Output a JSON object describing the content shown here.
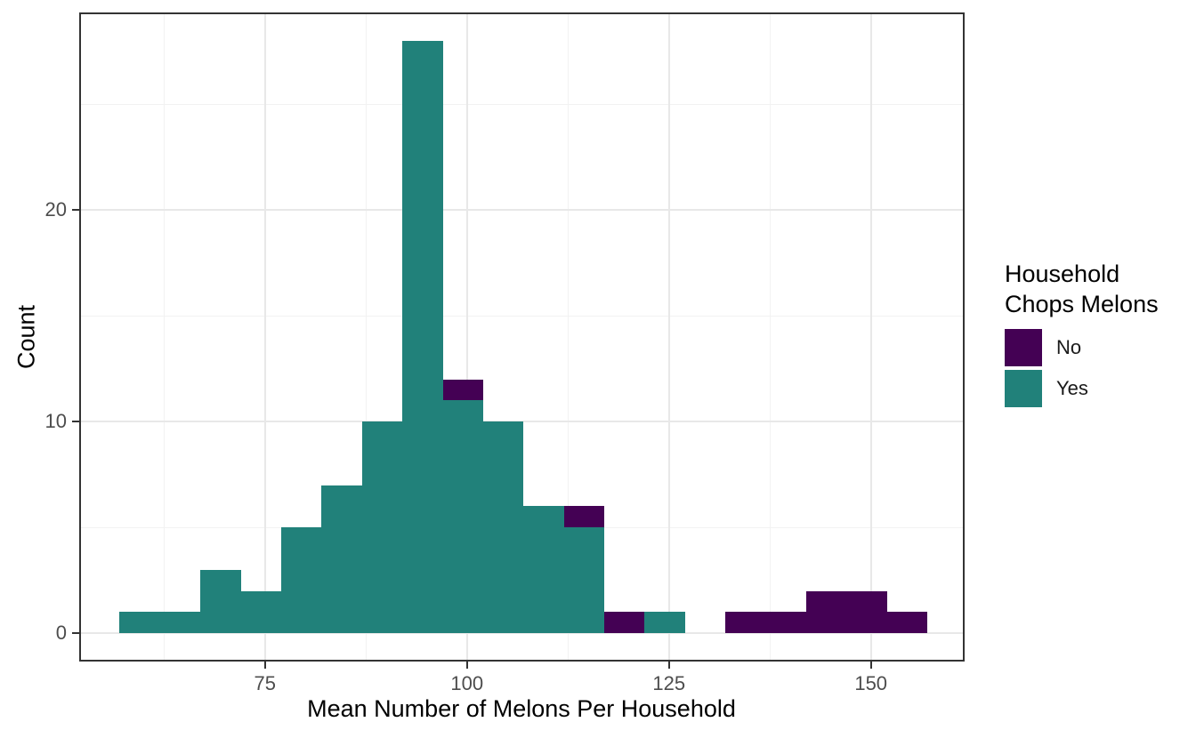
{
  "figure": {
    "xlabel": "Mean Number of Melons Per Household",
    "ylabel": "Count",
    "legend": {
      "title_lines": [
        "Household",
        "Chops Melons"
      ],
      "items": [
        {
          "label": "No",
          "color": "#440154"
        },
        {
          "label": "Yes",
          "color": "#21817A"
        }
      ]
    },
    "colors": {
      "background": "#ffffff",
      "panel_border": "#333333",
      "grid_major": "#e8e8e8",
      "grid_minor": "#f2f2f2",
      "tick_mark": "#333333",
      "tick_label": "#4d4d4d",
      "axis_title": "#000000",
      "fill_no": "#440154",
      "fill_yes": "#21817A"
    }
  },
  "chart_data": {
    "type": "bar",
    "subtype": "stacked-histogram",
    "title": "",
    "xlabel": "Mean Number of Melons Per Household",
    "ylabel": "Count",
    "legend_title": "Household Chops Melons",
    "legend_position": "right",
    "grid": true,
    "bin_width": 5,
    "bin_starts": [
      57,
      62,
      67,
      72,
      77,
      82,
      87,
      92,
      97,
      102,
      107,
      112,
      117,
      122,
      127,
      132,
      137,
      142,
      147,
      152
    ],
    "series": [
      {
        "name": "Yes",
        "color": "#21817A",
        "values": [
          1,
          1,
          3,
          2,
          5,
          7,
          10,
          28,
          11,
          10,
          6,
          5,
          0,
          1,
          0,
          0,
          0,
          0,
          0,
          0
        ]
      },
      {
        "name": "No",
        "color": "#440154",
        "values": [
          0,
          0,
          0,
          0,
          0,
          0,
          0,
          0,
          1,
          0,
          0,
          1,
          1,
          0,
          0,
          1,
          1,
          2,
          2,
          1
        ]
      }
    ],
    "x_ticks": [
      75,
      100,
      125,
      150
    ],
    "y_ticks": [
      0,
      10,
      20
    ],
    "x_minor_gridlines": [
      62.5,
      87.5,
      112.5,
      137.5
    ],
    "y_minor_gridlines": [
      5,
      15,
      25
    ],
    "x_domain": [
      52,
      161.6
    ],
    "y_domain": [
      -1.34,
      29.34
    ],
    "xlim_data": [
      57,
      157
    ],
    "ylim_data": [
      0,
      28
    ]
  }
}
